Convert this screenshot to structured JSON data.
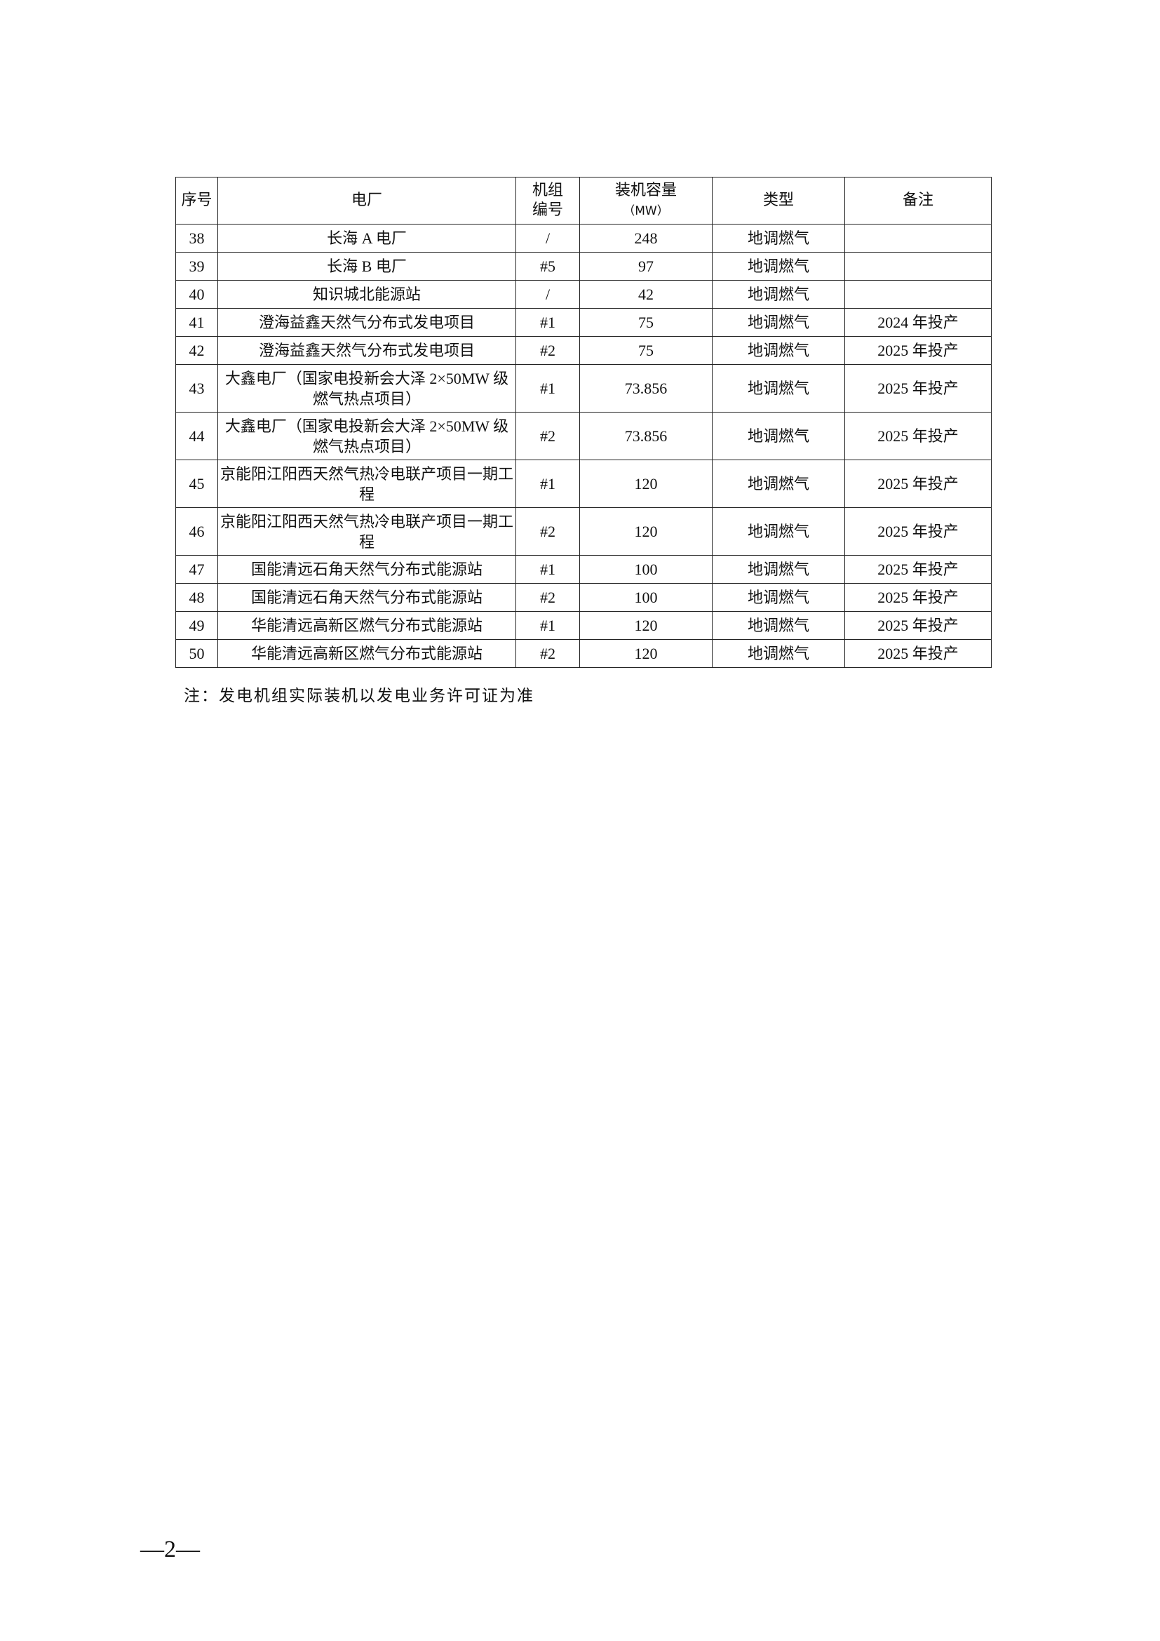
{
  "table": {
    "headers": {
      "no": "序号",
      "plant": "电厂",
      "unit_l1": "机组",
      "unit_l2": "编号",
      "cap_l1": "装机容量",
      "cap_l2": "（MW）",
      "type": "类型",
      "remark": "备注"
    },
    "rows": [
      {
        "no": "38",
        "plant": "长海 A 电厂",
        "unit": "/",
        "capacity": "248",
        "type": "地调燃气",
        "remark": ""
      },
      {
        "no": "39",
        "plant": "长海 B 电厂",
        "unit": "#5",
        "capacity": "97",
        "type": "地调燃气",
        "remark": ""
      },
      {
        "no": "40",
        "plant": "知识城北能源站",
        "unit": "/",
        "capacity": "42",
        "type": "地调燃气",
        "remark": ""
      },
      {
        "no": "41",
        "plant": "澄海益鑫天然气分布式发电项目",
        "unit": "#1",
        "capacity": "75",
        "type": "地调燃气",
        "remark": "2024 年投产"
      },
      {
        "no": "42",
        "plant": "澄海益鑫天然气分布式发电项目",
        "unit": "#2",
        "capacity": "75",
        "type": "地调燃气",
        "remark": "2025 年投产"
      },
      {
        "no": "43",
        "plant": "大鑫电厂（国家电投新会大泽 2×50MW 级燃气热点项目）",
        "unit": "#1",
        "capacity": "73.856",
        "type": "地调燃气",
        "remark": "2025 年投产"
      },
      {
        "no": "44",
        "plant": "大鑫电厂（国家电投新会大泽 2×50MW 级燃气热点项目）",
        "unit": "#2",
        "capacity": "73.856",
        "type": "地调燃气",
        "remark": "2025 年投产"
      },
      {
        "no": "45",
        "plant": "京能阳江阳西天然气热冷电联产项目一期工程",
        "unit": "#1",
        "capacity": "120",
        "type": "地调燃气",
        "remark": "2025 年投产"
      },
      {
        "no": "46",
        "plant": "京能阳江阳西天然气热冷电联产项目一期工程",
        "unit": "#2",
        "capacity": "120",
        "type": "地调燃气",
        "remark": "2025 年投产"
      },
      {
        "no": "47",
        "plant": "国能清远石角天然气分布式能源站",
        "unit": "#1",
        "capacity": "100",
        "type": "地调燃气",
        "remark": "2025 年投产"
      },
      {
        "no": "48",
        "plant": "国能清远石角天然气分布式能源站",
        "unit": "#2",
        "capacity": "100",
        "type": "地调燃气",
        "remark": "2025 年投产"
      },
      {
        "no": "49",
        "plant": "华能清远高新区燃气分布式能源站",
        "unit": "#1",
        "capacity": "120",
        "type": "地调燃气",
        "remark": "2025 年投产"
      },
      {
        "no": "50",
        "plant": "华能清远高新区燃气分布式能源站",
        "unit": "#2",
        "capacity": "120",
        "type": "地调燃气",
        "remark": "2025 年投产"
      }
    ]
  },
  "note": "注：发电机组实际装机以发电业务许可证为准",
  "page_number": "—2—"
}
